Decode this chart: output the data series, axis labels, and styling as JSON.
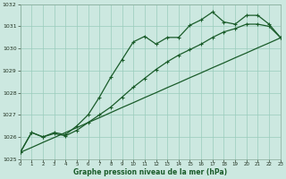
{
  "title": "Graphe pression niveau de la mer (hPa)",
  "bg_color": "#cce8e0",
  "grid_color": "#99ccbb",
  "line_color": "#1a5c2a",
  "xlim": [
    0,
    23
  ],
  "ylim": [
    1025,
    1032
  ],
  "yticks": [
    1025,
    1026,
    1027,
    1028,
    1029,
    1030,
    1031,
    1032
  ],
  "xticks": [
    0,
    1,
    2,
    3,
    4,
    5,
    6,
    7,
    8,
    9,
    10,
    11,
    12,
    13,
    14,
    15,
    16,
    17,
    18,
    19,
    20,
    21,
    22,
    23
  ],
  "s1_y": [
    1025.3,
    1026.2,
    1026.0,
    1026.2,
    1026.1,
    1026.5,
    1027.0,
    1027.8,
    1028.7,
    1029.5,
    1030.3,
    1030.55,
    1030.2,
    1030.5,
    1030.5,
    1031.05,
    1031.3,
    1031.65,
    1031.2,
    1031.1,
    1031.5,
    1031.5,
    1031.1,
    1030.5
  ],
  "s2_y": [
    1025.3,
    1026.2,
    1026.0,
    1026.15,
    1026.05,
    1026.3,
    1026.65,
    1027.0,
    1027.35,
    1027.8,
    1028.25,
    1028.65,
    1029.05,
    1029.4,
    1029.7,
    1029.95,
    1030.2,
    1030.5,
    1030.75,
    1030.9,
    1031.1,
    1031.1,
    1031.0,
    1030.5
  ],
  "s3_y": [
    1025.3,
    1025.52,
    1025.75,
    1025.97,
    1026.2,
    1026.42,
    1026.65,
    1026.87,
    1027.1,
    1027.33,
    1027.55,
    1027.78,
    1028.0,
    1028.23,
    1028.45,
    1028.68,
    1028.9,
    1029.13,
    1029.35,
    1029.58,
    1029.8,
    1030.03,
    1030.25,
    1030.48
  ]
}
